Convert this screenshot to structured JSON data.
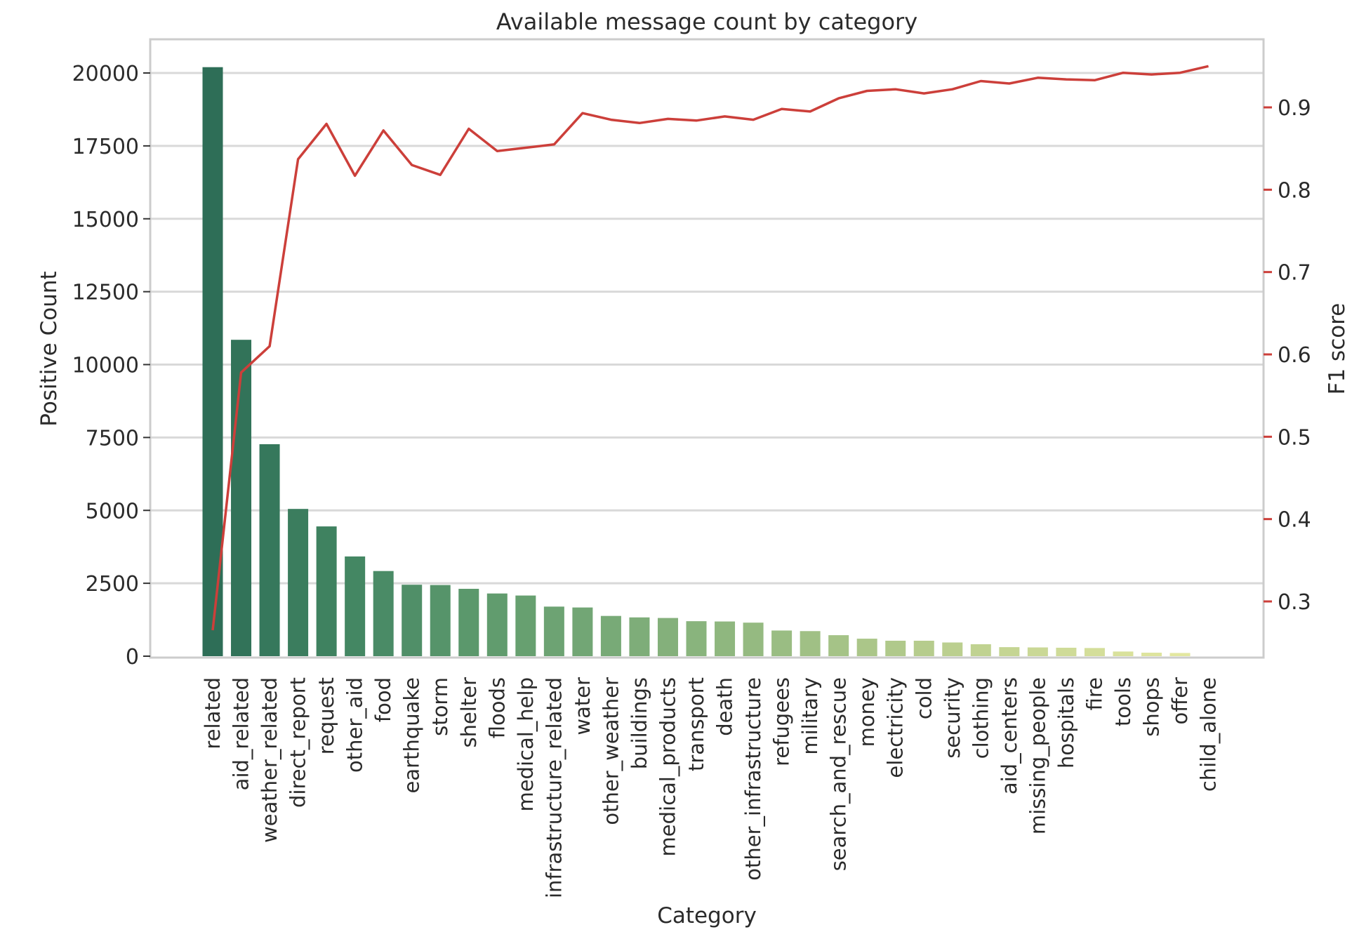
{
  "chart_data": {
    "type": "bar",
    "title": "Available message count by category",
    "xlabel": "Category",
    "ylabel": "Positive Count",
    "y2label": "F1 score",
    "categories": [
      "related",
      "aid_related",
      "weather_related",
      "direct_report",
      "request",
      "other_aid",
      "food",
      "earthquake",
      "storm",
      "shelter",
      "floods",
      "medical_help",
      "infrastructure_related",
      "water",
      "other_weather",
      "buildings",
      "medical_products",
      "transport",
      "death",
      "other_infrastructure",
      "refugees",
      "military",
      "search_and_rescue",
      "money",
      "electricity",
      "cold",
      "security",
      "clothing",
      "aid_centers",
      "missing_people",
      "hospitals",
      "fire",
      "tools",
      "shops",
      "offer",
      "child_alone"
    ],
    "series": [
      {
        "type": "bar",
        "axis": "left",
        "values": [
          20200,
          10850,
          7270,
          5050,
          4450,
          3420,
          2920,
          2450,
          2440,
          2310,
          2150,
          2080,
          1700,
          1670,
          1380,
          1330,
          1310,
          1200,
          1190,
          1150,
          880,
          860,
          720,
          600,
          530,
          530,
          470,
          410,
          310,
          300,
          290,
          280,
          160,
          120,
          110,
          0
        ],
        "colors": [
          "#2e6e57",
          "#327359",
          "#36785c",
          "#3b7d5e",
          "#3f8260",
          "#448763",
          "#4a8b66",
          "#508f68",
          "#56946a",
          "#5b986c",
          "#619c6e",
          "#67a070",
          "#6da373",
          "#72a675",
          "#78aa77",
          "#7ead79",
          "#84b07b",
          "#89b47d",
          "#8fb77f",
          "#95ba81",
          "#9abd83",
          "#a0c085",
          "#a5c387",
          "#abc689",
          "#b0c98b",
          "#b6cc8d",
          "#bbcf8f",
          "#c0d291",
          "#c5d593",
          "#cad896",
          "#cfdb98",
          "#d4de9a",
          "#d9e19c",
          "#dee49e",
          "#e3e7a0",
          "#e8eaa2"
        ]
      },
      {
        "type": "line",
        "axis": "right",
        "color": "#cc3f3a",
        "values": [
          0.265,
          0.578,
          0.61,
          0.837,
          0.88,
          0.817,
          0.872,
          0.83,
          0.818,
          0.874,
          0.847,
          0.851,
          0.855,
          0.893,
          0.885,
          0.881,
          0.886,
          0.884,
          0.889,
          0.885,
          0.898,
          0.895,
          0.911,
          0.92,
          0.922,
          0.917,
          0.922,
          0.932,
          0.929,
          0.936,
          0.934,
          0.933,
          0.942,
          0.94,
          0.942,
          0.95
        ]
      }
    ],
    "yticks": [
      0,
      2500,
      5000,
      7500,
      10000,
      12500,
      15000,
      17500,
      20000
    ],
    "ylim": [
      0,
      21300
    ],
    "y2ticks": [
      0.3,
      0.4,
      0.5,
      0.6,
      0.7,
      0.8,
      0.9
    ],
    "y2lim": [
      0.23,
      0.98
    ],
    "grid": true
  }
}
